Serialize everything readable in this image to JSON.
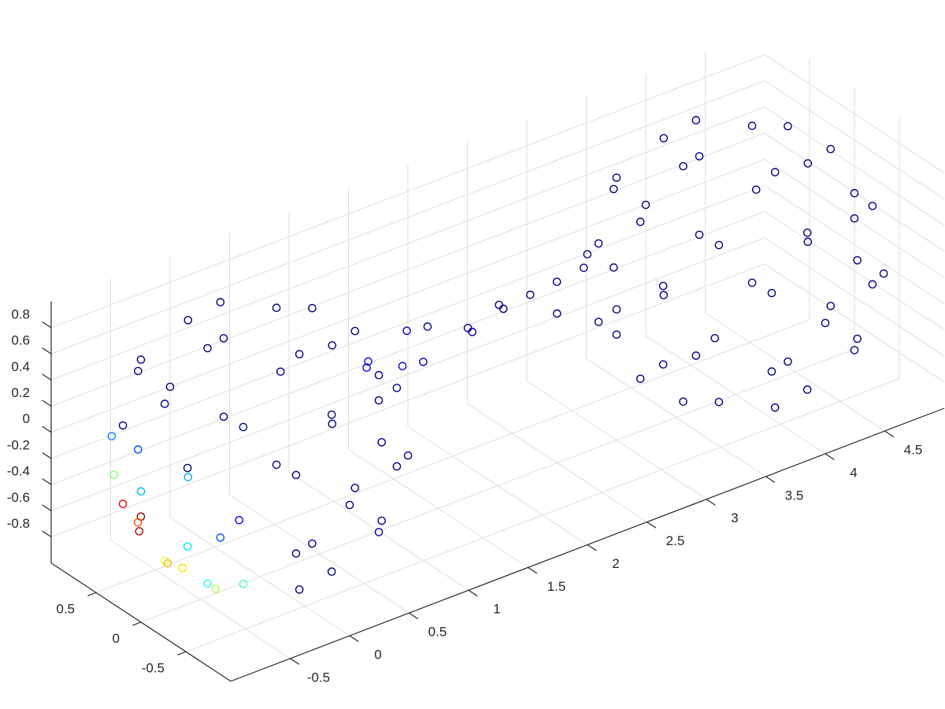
{
  "chart_data": {
    "type": "scatter3",
    "marker": "o",
    "colormap": "jet",
    "clim": [
      0,
      1
    ],
    "grid": true,
    "x": [
      0.44,
      0,
      -0.44,
      0,
      0.8,
      0.57,
      0,
      -0.57,
      -0.8,
      -0.57,
      0,
      0.57,
      0.88,
      0.36,
      -0.36,
      -0.88,
      -0.88,
      -0.36,
      0.36,
      0.88,
      1,
      0.71,
      0,
      -0.71,
      -1,
      -0.71,
      0,
      0.71,
      0.88,
      0.36,
      -0.36,
      -0.88,
      -0.88,
      -0.36,
      0.36,
      0.88,
      0.8,
      0.57,
      0,
      -0.57,
      -0.8,
      -0.57,
      0,
      0.57,
      0.44,
      0,
      -0.44,
      0,
      -0.95,
      -0.75,
      -0.7,
      -0.6,
      -0.85,
      -0.5,
      1.1,
      1.2,
      1.35,
      1.5,
      1.6,
      1.75,
      1.9,
      2.05,
      2.2,
      2.35,
      2.5,
      2.65,
      2.8,
      2.95,
      4.44,
      4,
      3.56,
      4,
      4.8,
      4.57,
      4,
      3.43,
      3.2,
      3.43,
      4,
      4.57,
      4.88,
      4.36,
      3.64,
      3.12,
      3.12,
      3.64,
      4.36,
      4.88,
      5,
      4.71,
      4,
      3.29,
      3,
      3.29,
      4,
      4.71,
      4.88,
      4.36,
      3.64,
      3.12,
      3.12,
      3.64,
      4.36,
      4.88,
      4.8,
      4.57,
      4,
      3.43,
      3.2,
      3.43,
      4,
      4.57,
      4.44,
      4,
      3.56,
      4
    ],
    "y": [
      0,
      0.44,
      0,
      -0.44,
      0,
      0.57,
      0.8,
      0.57,
      0,
      -0.57,
      -0.8,
      -0.57,
      0.36,
      0.88,
      0.88,
      0.36,
      -0.36,
      -0.88,
      -0.88,
      -0.36,
      0,
      0.71,
      1,
      0.71,
      0,
      -0.71,
      -1,
      -0.71,
      0.36,
      0.88,
      0.88,
      0.36,
      -0.36,
      -0.88,
      -0.88,
      -0.36,
      0,
      0.57,
      0.8,
      0.57,
      0,
      -0.57,
      -0.8,
      -0.57,
      0,
      0.44,
      0,
      -0.44,
      0.1,
      0.35,
      0.1,
      -0.3,
      0.5,
      0.2,
      0.25,
      0.4,
      0.2,
      0.35,
      0.3,
      0.45,
      0.2,
      0.35,
      0.25,
      0.4,
      0.3,
      0.2,
      0.4,
      0.3,
      0,
      0.44,
      0,
      -0.44,
      0,
      0.57,
      0.8,
      0.57,
      0,
      -0.57,
      -0.8,
      -0.57,
      0.36,
      0.88,
      0.88,
      0.36,
      -0.36,
      -0.88,
      -0.88,
      -0.36,
      0,
      0.71,
      1,
      0.71,
      0,
      -0.71,
      -1,
      -0.71,
      0.36,
      0.88,
      0.88,
      0.36,
      -0.36,
      -0.88,
      -0.88,
      -0.36,
      0,
      0.57,
      0.8,
      0.57,
      0,
      -0.57,
      -0.8,
      -0.57,
      0,
      0.44,
      0,
      -0.44
    ],
    "z": [
      0.9,
      0.9,
      0.9,
      0.9,
      0.6,
      0.6,
      0.6,
      0.6,
      0.6,
      0.6,
      0.6,
      0.6,
      0.3,
      0.3,
      0.3,
      0.3,
      0.3,
      0.3,
      0.3,
      0.3,
      0,
      0,
      0,
      0,
      0,
      0,
      0,
      0,
      -0.3,
      -0.3,
      -0.3,
      -0.3,
      -0.3,
      -0.3,
      -0.3,
      -0.3,
      -0.6,
      -0.6,
      -0.6,
      -0.6,
      -0.6,
      -0.6,
      -0.6,
      -0.6,
      -0.9,
      -0.9,
      -0.9,
      -0.9,
      -0.3,
      -0.55,
      -0.7,
      -0.75,
      -0.15,
      -0.85,
      0.15,
      0,
      0.05,
      0.2,
      -0.05,
      0.1,
      0.15,
      0,
      0.2,
      0.05,
      0.15,
      0,
      0.1,
      0.2,
      0.9,
      0.9,
      0.9,
      0.9,
      0.6,
      0.6,
      0.6,
      0.6,
      0.6,
      0.6,
      0.6,
      0.6,
      0.3,
      0.3,
      0.3,
      0.3,
      0.3,
      0.3,
      0.3,
      0.3,
      0,
      0,
      0,
      0,
      0,
      0,
      0,
      0,
      -0.3,
      -0.3,
      -0.3,
      -0.3,
      -0.3,
      -0.3,
      -0.3,
      -0.3,
      -0.6,
      -0.6,
      -0.6,
      -0.6,
      -0.6,
      -0.6,
      -0.6,
      -0.6,
      -0.9,
      -0.9,
      -0.9,
      -0.9
    ],
    "c": [
      0,
      0,
      0,
      0,
      0,
      0,
      0,
      0,
      0,
      0,
      0,
      0,
      0,
      0,
      0,
      0,
      0,
      0,
      0,
      0,
      0,
      0,
      0,
      0.25,
      0.3,
      0.1,
      0,
      0,
      0,
      0,
      0.2,
      0.9,
      0.35,
      0,
      0,
      0,
      0,
      0,
      0.3,
      1,
      0.6,
      0.45,
      0,
      0,
      0,
      0.2,
      0.4,
      0,
      0.8,
      0.95,
      0.7,
      0.55,
      0.5,
      0.65,
      0.12,
      0.1,
      0.08,
      0.05,
      0.04,
      0.03,
      0.02,
      0.01,
      0,
      0,
      0,
      0,
      0,
      0,
      0,
      0,
      0,
      0,
      0,
      0,
      0,
      0,
      0,
      0,
      0,
      0,
      0,
      0,
      0,
      0,
      0,
      0,
      0,
      0,
      0,
      0,
      0,
      0,
      0,
      0,
      0,
      0,
      0,
      0,
      0,
      0,
      0,
      0,
      0,
      0,
      0,
      0,
      0,
      0,
      0,
      0,
      0,
      0,
      0,
      0,
      0,
      0
    ],
    "xlim": [
      -1,
      5
    ],
    "ylim": [
      -1,
      1
    ],
    "zlim": [
      -1,
      1
    ],
    "xticks": [
      -0.5,
      0,
      0.5,
      1,
      1.5,
      2,
      2.5,
      3,
      3.5,
      4,
      4.5
    ],
    "yticks": [
      -0.5,
      0,
      0.5
    ],
    "zticks": [
      -0.8,
      -0.6,
      -0.4,
      -0.2,
      0,
      0.2,
      0.4,
      0.6,
      0.8
    ]
  }
}
